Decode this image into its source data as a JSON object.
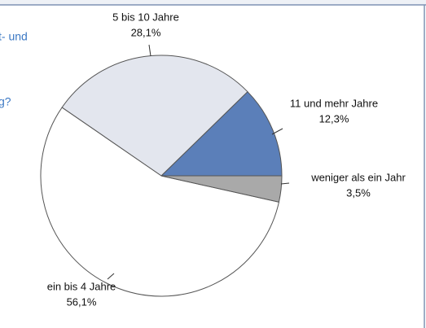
{
  "chart_data": {
    "type": "pie",
    "categories": [
      "11 und mehr Jahre",
      "5 bis 10 Jahre",
      "ein bis 4 Jahre",
      "weniger als ein Jahr"
    ],
    "values": [
      12.3,
      28.1,
      56.1,
      3.5
    ],
    "value_labels": [
      "12,3%",
      "28,1%",
      "56,1%",
      "3,5%"
    ],
    "colors": [
      "#5b7fb9",
      "#e3e6ee",
      "#ffffff",
      "#a9a9a9"
    ],
    "side_text": [
      "t- und",
      "g?"
    ]
  }
}
